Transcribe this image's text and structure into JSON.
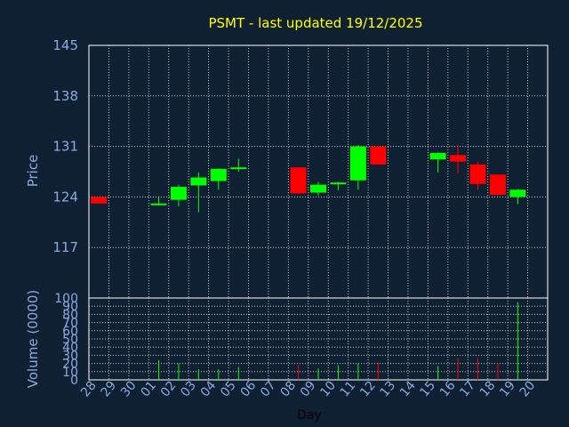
{
  "chart_data": [
    {
      "type": "candlestick",
      "title": "PSMT - last updated 19/12/2025",
      "ylabel": "Price",
      "xlabel": "Day",
      "ylim": [
        110,
        145
      ],
      "y_ticks": [
        "145",
        "138",
        "131",
        "124",
        "117"
      ],
      "grid": true,
      "categories": [
        "28",
        "29",
        "30",
        "01",
        "02",
        "03",
        "04",
        "05",
        "06",
        "07",
        "08",
        "09",
        "10",
        "11",
        "12",
        "13",
        "14",
        "15",
        "16",
        "17",
        "18",
        "19",
        "20"
      ],
      "candles": [
        {
          "x": "28",
          "open": 124.0,
          "high": 124.0,
          "low": 123.1,
          "close": 123.1,
          "color": "#ff0000"
        },
        {
          "x": "01",
          "open": 122.9,
          "high": 124.1,
          "low": 122.8,
          "close": 123.1,
          "color": "#00ff00"
        },
        {
          "x": "02",
          "open": 123.6,
          "high": 125.7,
          "low": 122.7,
          "close": 125.4,
          "color": "#00ff00"
        },
        {
          "x": "03",
          "open": 125.6,
          "high": 127.4,
          "low": 121.9,
          "close": 126.7,
          "color": "#00ff00"
        },
        {
          "x": "04",
          "open": 126.2,
          "high": 128.0,
          "low": 125.0,
          "close": 127.9,
          "color": "#00ff00"
        },
        {
          "x": "05",
          "open": 127.9,
          "high": 129.3,
          "low": 127.5,
          "close": 128.1,
          "color": "#00ff00"
        },
        {
          "x": "08",
          "open": 128.1,
          "high": 128.1,
          "low": 124.4,
          "close": 124.5,
          "color": "#ff0000"
        },
        {
          "x": "09",
          "open": 124.6,
          "high": 126.1,
          "low": 124.2,
          "close": 125.7,
          "color": "#00ff00"
        },
        {
          "x": "10",
          "open": 125.8,
          "high": 126.1,
          "low": 124.9,
          "close": 126.0,
          "color": "#00ff00"
        },
        {
          "x": "11",
          "open": 126.3,
          "high": 131.2,
          "low": 125.0,
          "close": 131.0,
          "color": "#00ff00"
        },
        {
          "x": "12",
          "open": 131.0,
          "high": 131.0,
          "low": 128.5,
          "close": 128.5,
          "color": "#ff0000"
        },
        {
          "x": "15",
          "open": 129.2,
          "high": 130.2,
          "low": 127.4,
          "close": 130.1,
          "color": "#00ff00"
        },
        {
          "x": "16",
          "open": 129.8,
          "high": 131.2,
          "low": 127.2,
          "close": 128.9,
          "color": "#ff0000"
        },
        {
          "x": "17",
          "open": 128.5,
          "high": 128.9,
          "low": 125.0,
          "close": 125.8,
          "color": "#ff0000"
        },
        {
          "x": "18",
          "open": 127.1,
          "high": 127.1,
          "low": 124.2,
          "close": 124.3,
          "color": "#ff0000"
        },
        {
          "x": "19",
          "open": 124.0,
          "high": 125.1,
          "low": 123.0,
          "close": 125.0,
          "color": "#00ff00"
        }
      ]
    },
    {
      "type": "bar",
      "ylabel": "Volume (0000)",
      "ylim": [
        0,
        100
      ],
      "y_ticks": [
        "100",
        "90",
        "80",
        "70",
        "60",
        "50",
        "40",
        "30",
        "20",
        "10",
        "0"
      ],
      "categories": [
        "28",
        "29",
        "30",
        "01",
        "02",
        "03",
        "04",
        "05",
        "06",
        "07",
        "08",
        "09",
        "10",
        "11",
        "12",
        "13",
        "14",
        "15",
        "16",
        "17",
        "18",
        "19",
        "20"
      ],
      "values": [
        0,
        0,
        0,
        24,
        20,
        13,
        13,
        16,
        0,
        0,
        18,
        14,
        18,
        20,
        21,
        0,
        0,
        17,
        26,
        27,
        21,
        95,
        0
      ],
      "colors": [
        "#00ff00",
        "#00ff00",
        "#00ff00",
        "#00ff00",
        "#00ff00",
        "#00ff00",
        "#00ff00",
        "#00ff00",
        "#00ff00",
        "#00ff00",
        "#ff0000",
        "#00ff00",
        "#00ff00",
        "#00ff00",
        "#ff0000",
        "#00ff00",
        "#00ff00",
        "#00ff00",
        "#ff0000",
        "#ff0000",
        "#ff0000",
        "#00ff00",
        "#00ff00"
      ]
    }
  ]
}
